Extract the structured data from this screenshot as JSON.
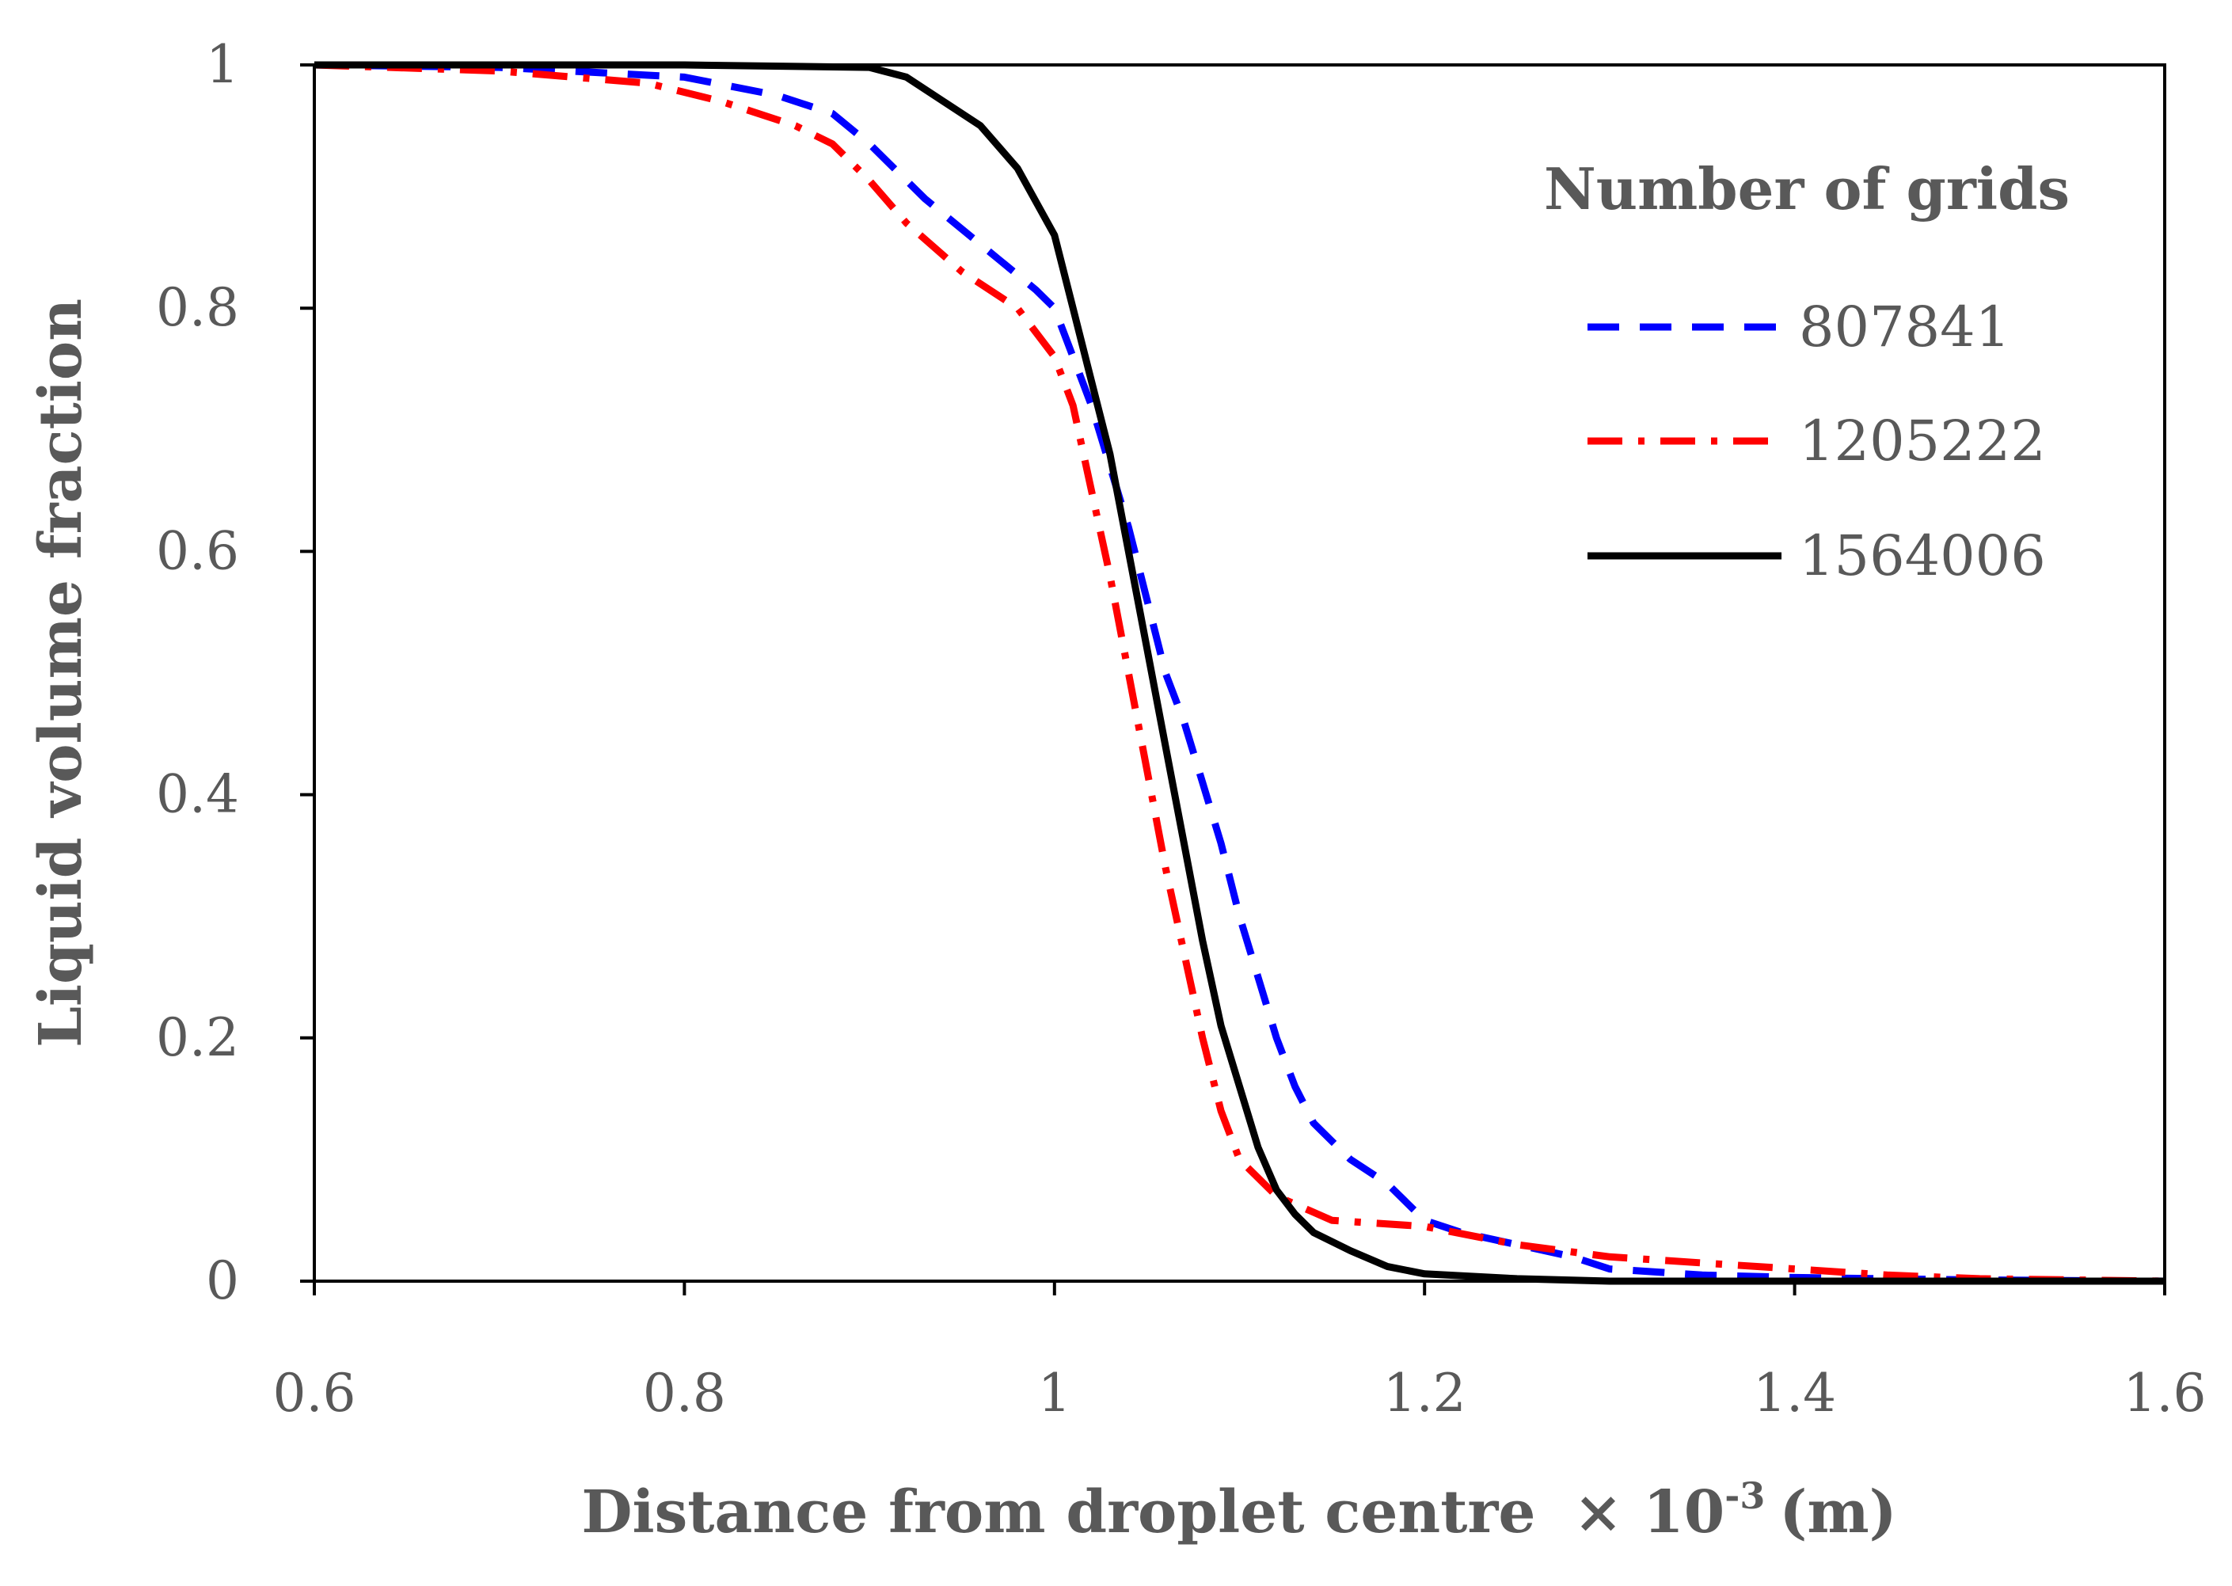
{
  "chart_data": {
    "type": "line",
    "title": "",
    "xlabel": "Distance from droplet centre",
    "xlabel_suffix": "× 10",
    "xlabel_exponent": "-3",
    "xlabel_unit": "(m)",
    "ylabel": "Liquid volume fraction",
    "xlim": [
      0.6,
      1.6
    ],
    "ylim": [
      0,
      1
    ],
    "x_ticks": [
      0.6,
      0.8,
      1.0,
      1.2,
      1.4,
      1.6
    ],
    "x_tick_labels": [
      "0.6",
      "0.8",
      "1",
      "1.2",
      "1.4",
      "1.6"
    ],
    "y_ticks": [
      0,
      0.2,
      0.4,
      0.6,
      0.8,
      1.0
    ],
    "y_tick_labels": [
      "0",
      "0.2",
      "0.4",
      "0.6",
      "0.8",
      "1"
    ],
    "grid": false,
    "legend_title": "Number of grids",
    "legend_position": "top-right",
    "series": [
      {
        "name": "807841",
        "color": "#0000ff",
        "style": "dashed",
        "points": [
          [
            0.6,
            1.0
          ],
          [
            0.7,
            0.998
          ],
          [
            0.8,
            0.99
          ],
          [
            0.85,
            0.975
          ],
          [
            0.88,
            0.96
          ],
          [
            0.9,
            0.935
          ],
          [
            0.93,
            0.89
          ],
          [
            0.95,
            0.865
          ],
          [
            0.97,
            0.84
          ],
          [
            0.99,
            0.815
          ],
          [
            1.0,
            0.8
          ],
          [
            1.01,
            0.76
          ],
          [
            1.02,
            0.72
          ],
          [
            1.03,
            0.67
          ],
          [
            1.04,
            0.62
          ],
          [
            1.05,
            0.56
          ],
          [
            1.06,
            0.5
          ],
          [
            1.07,
            0.46
          ],
          [
            1.08,
            0.41
          ],
          [
            1.09,
            0.36
          ],
          [
            1.1,
            0.3
          ],
          [
            1.11,
            0.25
          ],
          [
            1.12,
            0.2
          ],
          [
            1.13,
            0.16
          ],
          [
            1.14,
            0.13
          ],
          [
            1.16,
            0.1
          ],
          [
            1.18,
            0.08
          ],
          [
            1.2,
            0.05
          ],
          [
            1.22,
            0.04
          ],
          [
            1.25,
            0.03
          ],
          [
            1.28,
            0.02
          ],
          [
            1.3,
            0.01
          ],
          [
            1.35,
            0.005
          ],
          [
            1.4,
            0.003
          ],
          [
            1.5,
            0.001
          ],
          [
            1.6,
            0.0
          ]
        ]
      },
      {
        "name": "1205222",
        "color": "#ff0000",
        "style": "dash-dot",
        "points": [
          [
            0.6,
            1.0
          ],
          [
            0.7,
            0.995
          ],
          [
            0.78,
            0.985
          ],
          [
            0.82,
            0.97
          ],
          [
            0.86,
            0.95
          ],
          [
            0.88,
            0.935
          ],
          [
            0.9,
            0.905
          ],
          [
            0.92,
            0.87
          ],
          [
            0.95,
            0.83
          ],
          [
            0.98,
            0.8
          ],
          [
            1.0,
            0.76
          ],
          [
            1.01,
            0.72
          ],
          [
            1.02,
            0.65
          ],
          [
            1.03,
            0.58
          ],
          [
            1.04,
            0.5
          ],
          [
            1.05,
            0.42
          ],
          [
            1.06,
            0.34
          ],
          [
            1.07,
            0.27
          ],
          [
            1.08,
            0.2
          ],
          [
            1.09,
            0.14
          ],
          [
            1.1,
            0.1
          ],
          [
            1.12,
            0.07
          ],
          [
            1.15,
            0.05
          ],
          [
            1.2,
            0.045
          ],
          [
            1.25,
            0.03
          ],
          [
            1.3,
            0.02
          ],
          [
            1.35,
            0.015
          ],
          [
            1.4,
            0.01
          ],
          [
            1.45,
            0.005
          ],
          [
            1.5,
            0.002
          ],
          [
            1.6,
            0.0
          ]
        ]
      },
      {
        "name": "1564006",
        "color": "#000000",
        "style": "solid",
        "points": [
          [
            0.6,
            1.0
          ],
          [
            0.7,
            1.0
          ],
          [
            0.8,
            1.0
          ],
          [
            0.9,
            0.998
          ],
          [
            0.92,
            0.99
          ],
          [
            0.94,
            0.97
          ],
          [
            0.96,
            0.95
          ],
          [
            0.98,
            0.915
          ],
          [
            1.0,
            0.86
          ],
          [
            1.01,
            0.8
          ],
          [
            1.02,
            0.74
          ],
          [
            1.03,
            0.68
          ],
          [
            1.04,
            0.6
          ],
          [
            1.05,
            0.52
          ],
          [
            1.06,
            0.44
          ],
          [
            1.07,
            0.36
          ],
          [
            1.08,
            0.28
          ],
          [
            1.09,
            0.21
          ],
          [
            1.1,
            0.16
          ],
          [
            1.11,
            0.11
          ],
          [
            1.12,
            0.075
          ],
          [
            1.13,
            0.055
          ],
          [
            1.14,
            0.04
          ],
          [
            1.16,
            0.025
          ],
          [
            1.18,
            0.012
          ],
          [
            1.2,
            0.006
          ],
          [
            1.25,
            0.002
          ],
          [
            1.3,
            0.0
          ],
          [
            1.4,
            0.0
          ],
          [
            1.6,
            0.0
          ]
        ]
      }
    ]
  }
}
